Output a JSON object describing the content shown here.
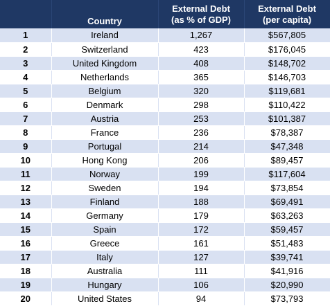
{
  "headers": {
    "rank": "",
    "country": "Country",
    "debt_gdp_line1": "External Debt",
    "debt_gdp_line2": "(as % of GDP)",
    "debt_capita_line1": "External Debt",
    "debt_capita_line2": "(per capita)"
  },
  "rows": [
    {
      "rank": "1",
      "country": "Ireland",
      "gdp": "1,267",
      "capita": "$567,805"
    },
    {
      "rank": "2",
      "country": "Switzerland",
      "gdp": "423",
      "capita": "$176,045"
    },
    {
      "rank": "3",
      "country": "United Kingdom",
      "gdp": "408",
      "capita": "$148,702"
    },
    {
      "rank": "4",
      "country": "Netherlands",
      "gdp": "365",
      "capita": "$146,703"
    },
    {
      "rank": "5",
      "country": "Belgium",
      "gdp": "320",
      "capita": "$119,681"
    },
    {
      "rank": "6",
      "country": "Denmark",
      "gdp": "298",
      "capita": "$110,422"
    },
    {
      "rank": "7",
      "country": "Austria",
      "gdp": "253",
      "capita": "$101,387"
    },
    {
      "rank": "8",
      "country": "France",
      "gdp": "236",
      "capita": "$78,387"
    },
    {
      "rank": "9",
      "country": "Portugal",
      "gdp": "214",
      "capita": "$47,348"
    },
    {
      "rank": "10",
      "country": "Hong Kong",
      "gdp": "206",
      "capita": "$89,457"
    },
    {
      "rank": "11",
      "country": "Norway",
      "gdp": "199",
      "capita": "$117,604"
    },
    {
      "rank": "12",
      "country": "Sweden",
      "gdp": "194",
      "capita": "$73,854"
    },
    {
      "rank": "13",
      "country": "Finland",
      "gdp": "188",
      "capita": "$69,491"
    },
    {
      "rank": "14",
      "country": "Germany",
      "gdp": "179",
      "capita": "$63,263"
    },
    {
      "rank": "15",
      "country": "Spain",
      "gdp": "172",
      "capita": "$59,457"
    },
    {
      "rank": "16",
      "country": "Greece",
      "gdp": "161",
      "capita": "$51,483"
    },
    {
      "rank": "17",
      "country": "Italy",
      "gdp": "127",
      "capita": "$39,741"
    },
    {
      "rank": "18",
      "country": "Australia",
      "gdp": "111",
      "capita": "$41,916"
    },
    {
      "rank": "19",
      "country": "Hungary",
      "gdp": "106",
      "capita": "$20,990"
    },
    {
      "rank": "20",
      "country": "United States",
      "gdp": "94",
      "capita": "$73,793"
    }
  ],
  "colors": {
    "header_bg": "#1f3864",
    "header_text": "#ffffff",
    "band_odd": "#d9e1f2",
    "band_even": "#ffffff"
  }
}
